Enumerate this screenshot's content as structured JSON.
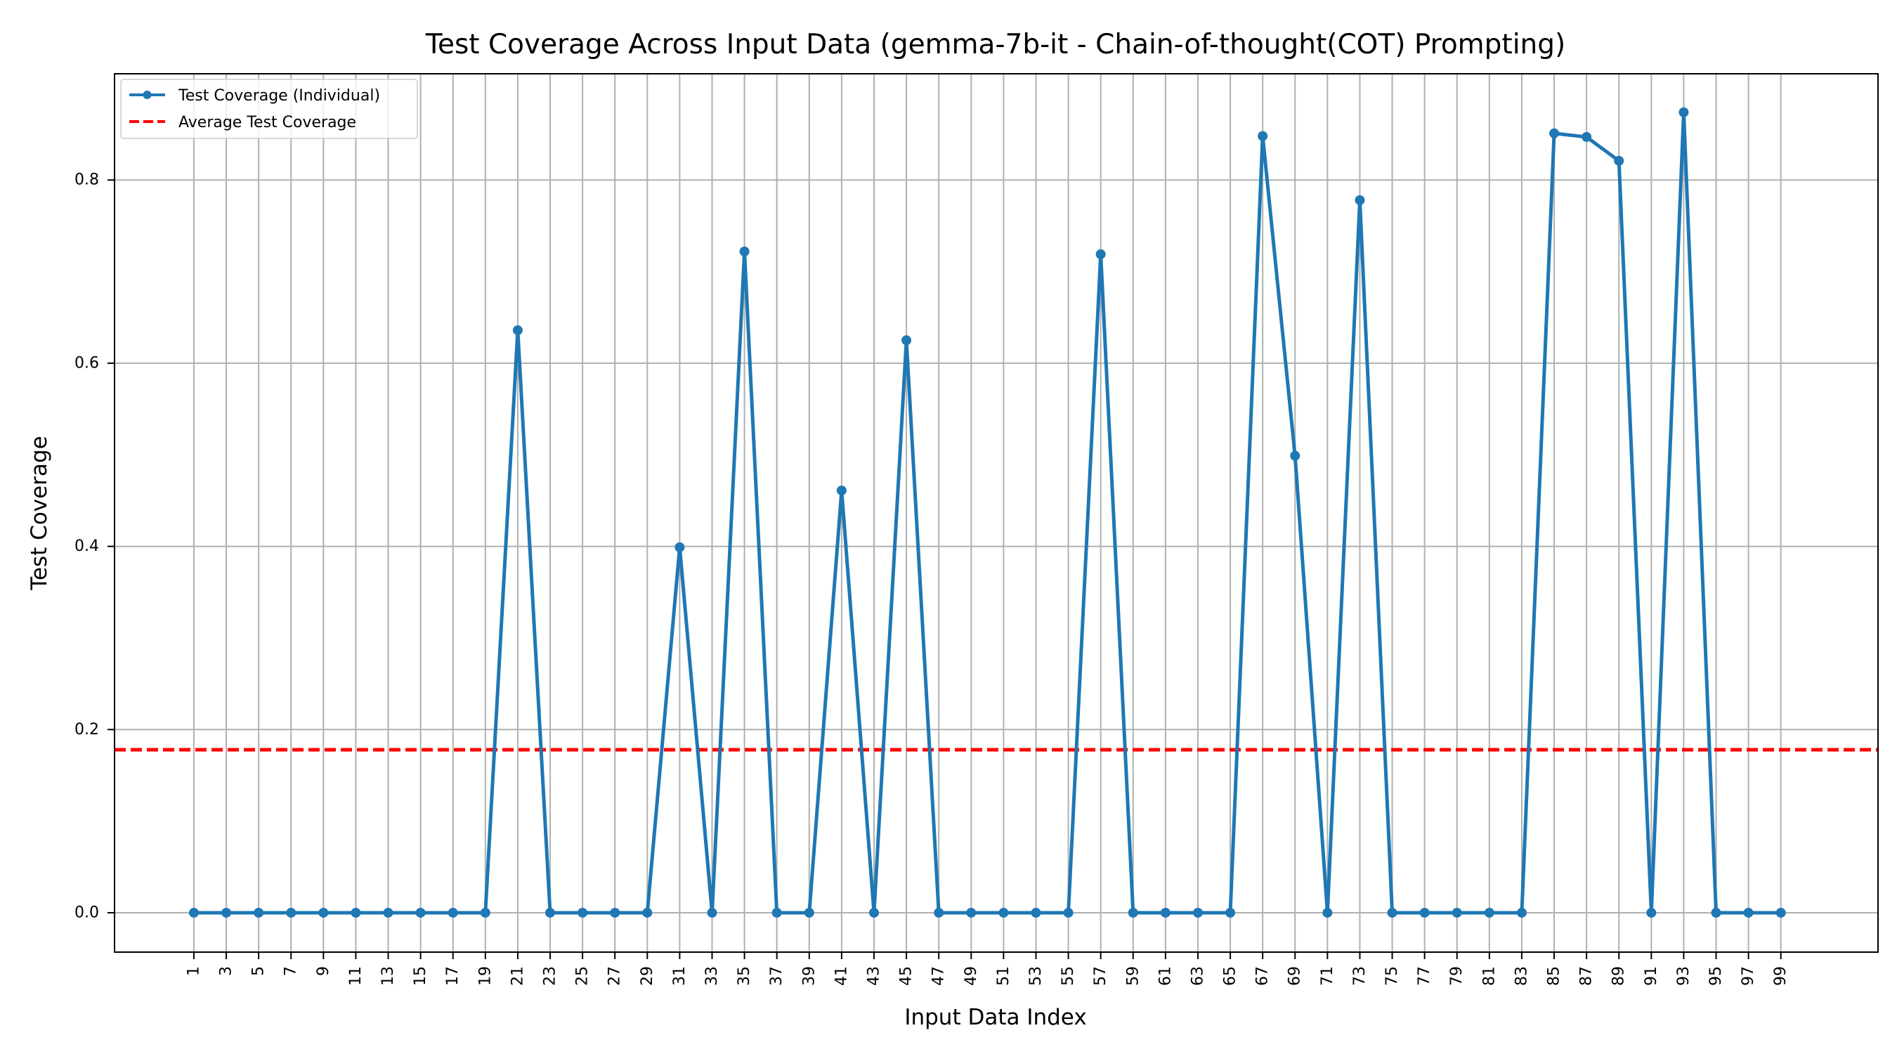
{
  "chart_data": {
    "type": "line",
    "title": "Test Coverage Across Input Data (gemma-7b-it - Chain-of-thought(COT) Prompting)",
    "xlabel": "Input Data Index",
    "ylabel": "Test Coverage",
    "x": [
      1,
      3,
      5,
      7,
      9,
      11,
      13,
      15,
      17,
      19,
      21,
      23,
      25,
      27,
      29,
      31,
      33,
      35,
      37,
      39,
      41,
      43,
      45,
      47,
      49,
      51,
      53,
      55,
      57,
      59,
      61,
      63,
      65,
      67,
      69,
      71,
      73,
      75,
      77,
      79,
      81,
      83,
      85,
      87,
      89,
      91,
      93,
      95,
      97,
      99
    ],
    "x_tick_labels": [
      "1",
      "3",
      "5",
      "7",
      "9",
      "11",
      "13",
      "15",
      "17",
      "19",
      "21",
      "23",
      "25",
      "27",
      "29",
      "31",
      "33",
      "35",
      "37",
      "39",
      "41",
      "43",
      "45",
      "47",
      "49",
      "51",
      "53",
      "55",
      "57",
      "59",
      "61",
      "63",
      "65",
      "67",
      "69",
      "71",
      "73",
      "75",
      "77",
      "79",
      "81",
      "83",
      "85",
      "87",
      "89",
      "91",
      "93",
      "95",
      "97",
      "99"
    ],
    "y_ticks": [
      0.0,
      0.2,
      0.4,
      0.6,
      0.8
    ],
    "y_tick_labels": [
      "0.0",
      "0.2",
      "0.4",
      "0.6",
      "0.8"
    ],
    "xlim": [
      -3.9,
      105
    ],
    "ylim": [
      -0.043,
      0.916
    ],
    "grid": true,
    "legend_position": "top-left",
    "series": [
      {
        "name": "Test Coverage (Individual)",
        "style": "line-markers",
        "color": "#1f77b4",
        "values": [
          0,
          0,
          0,
          0,
          0,
          0,
          0,
          0,
          0,
          0,
          0.636,
          0,
          0,
          0,
          0,
          0.399,
          0,
          0.722,
          0,
          0,
          0.461,
          0,
          0.625,
          0,
          0,
          0,
          0,
          0,
          0.719,
          0,
          0,
          0,
          0,
          0.848,
          0.499,
          0,
          0.778,
          0,
          0,
          0,
          0,
          0,
          0.851,
          0.847,
          0.821,
          0,
          0.874,
          0,
          0,
          0
        ]
      },
      {
        "name": "Average Test Coverage",
        "style": "dashed-hline",
        "color": "#ff0000",
        "value": 0.178
      }
    ]
  }
}
